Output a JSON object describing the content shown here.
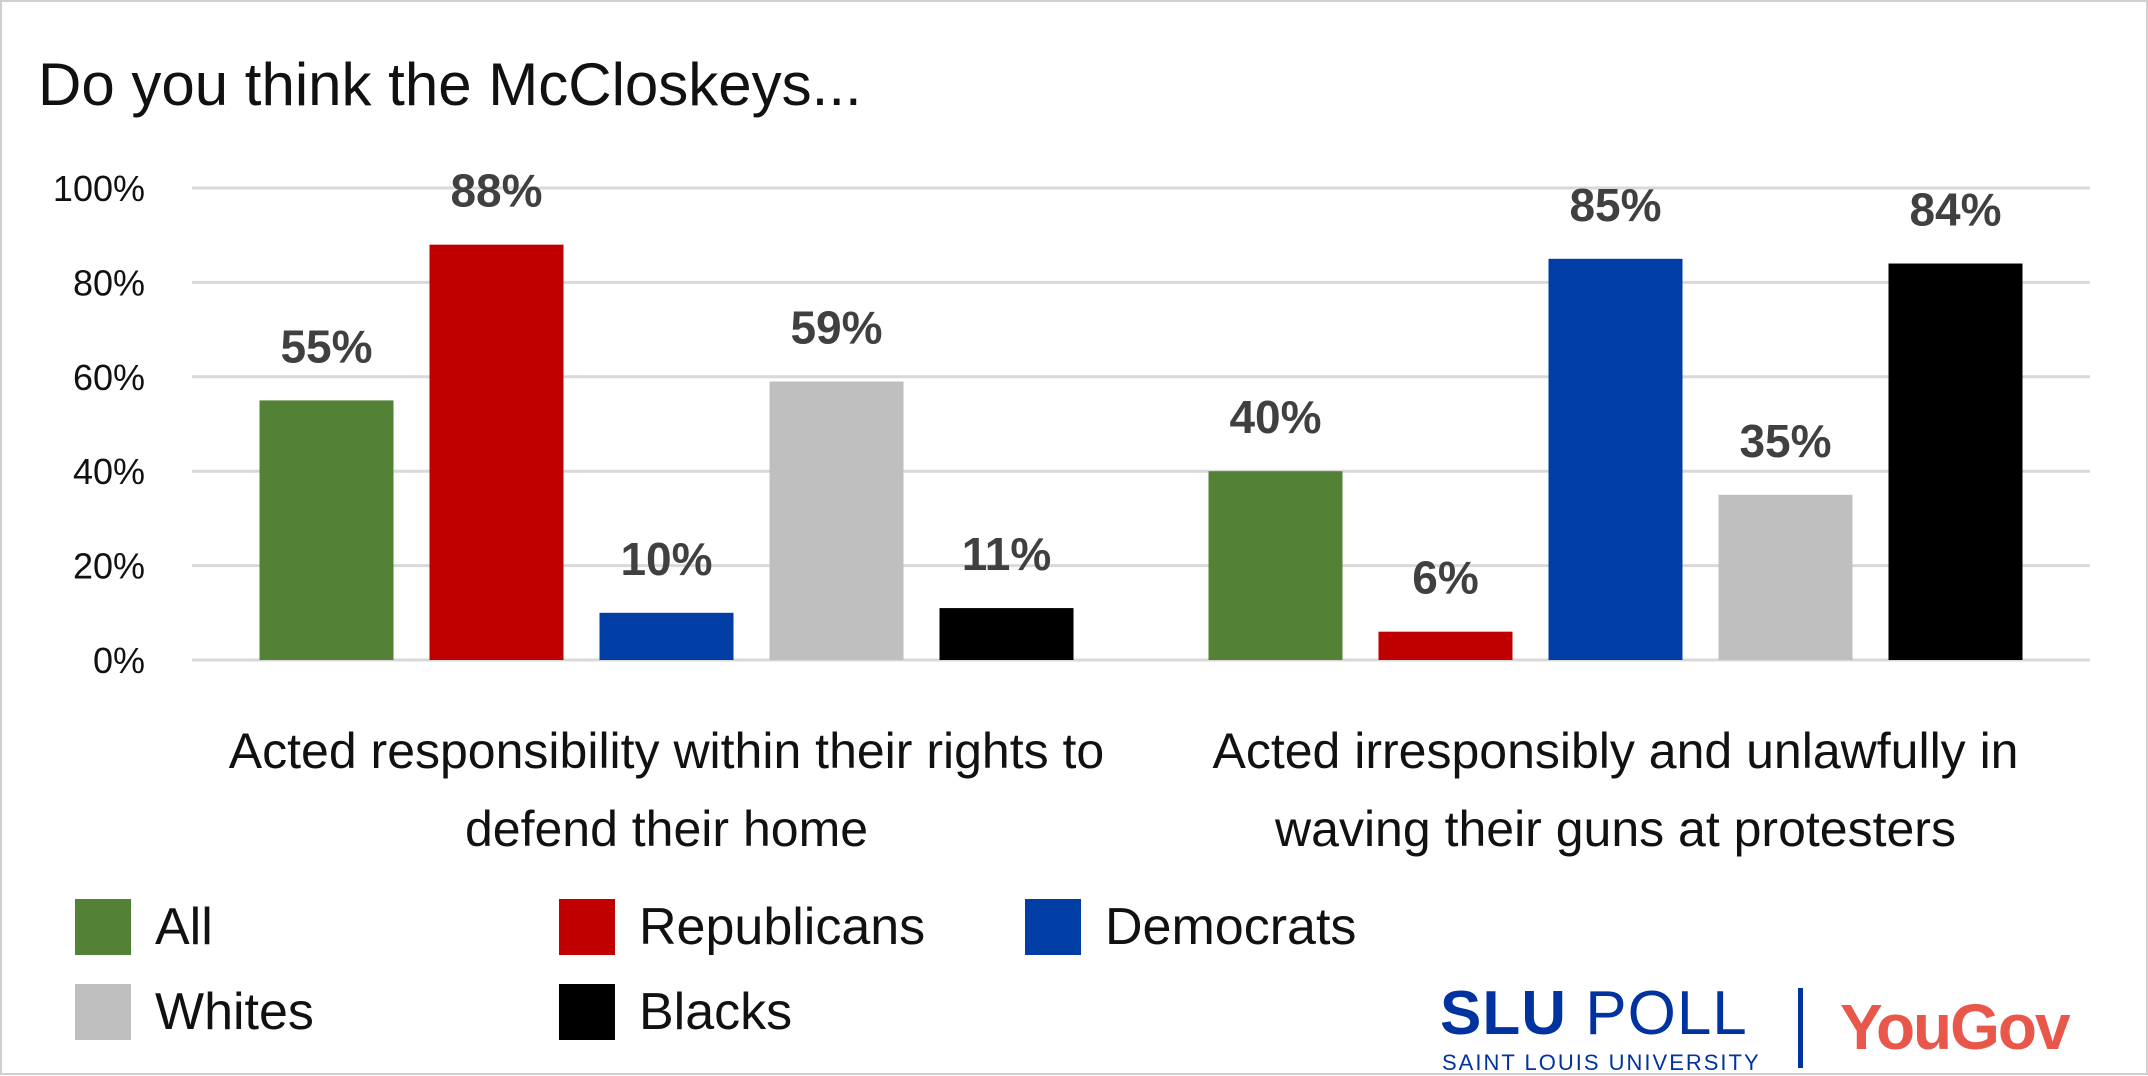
{
  "chart_data": {
    "type": "bar",
    "title": "Do you think the McCloskeys...",
    "categories": [
      "Acted responsibility within their rights to defend their home",
      "Acted irresponsibly and unlawfully in waving their guns at protesters"
    ],
    "series": [
      {
        "name": "All",
        "color": "#538135",
        "values": [
          55,
          40
        ]
      },
      {
        "name": "Republicans",
        "color": "#c00000",
        "values": [
          88,
          6
        ]
      },
      {
        "name": "Democrats",
        "color": "#003da5",
        "values": [
          10,
          85
        ]
      },
      {
        "name": "Whites",
        "color": "#bfbfbf",
        "values": [
          59,
          35
        ]
      },
      {
        "name": "Blacks",
        "color": "#000000",
        "values": [
          11,
          84
        ]
      }
    ],
    "data_labels": [
      [
        "55%",
        "40%"
      ],
      [
        "88%",
        "6%"
      ],
      [
        "10%",
        "85%"
      ],
      [
        "59%",
        "35%"
      ],
      [
        "11%",
        "84%"
      ]
    ],
    "yticks": [
      "0%",
      "20%",
      "40%",
      "60%",
      "80%",
      "100%"
    ],
    "ylim": [
      0,
      100
    ],
    "grid": true,
    "legend_position": "bottom-left"
  },
  "logos": {
    "slu_bold": "SLU",
    "slu_light": "POLL",
    "slu_sub": "SAINT LOUIS UNIVERSITY",
    "yougov": "YouGov"
  }
}
